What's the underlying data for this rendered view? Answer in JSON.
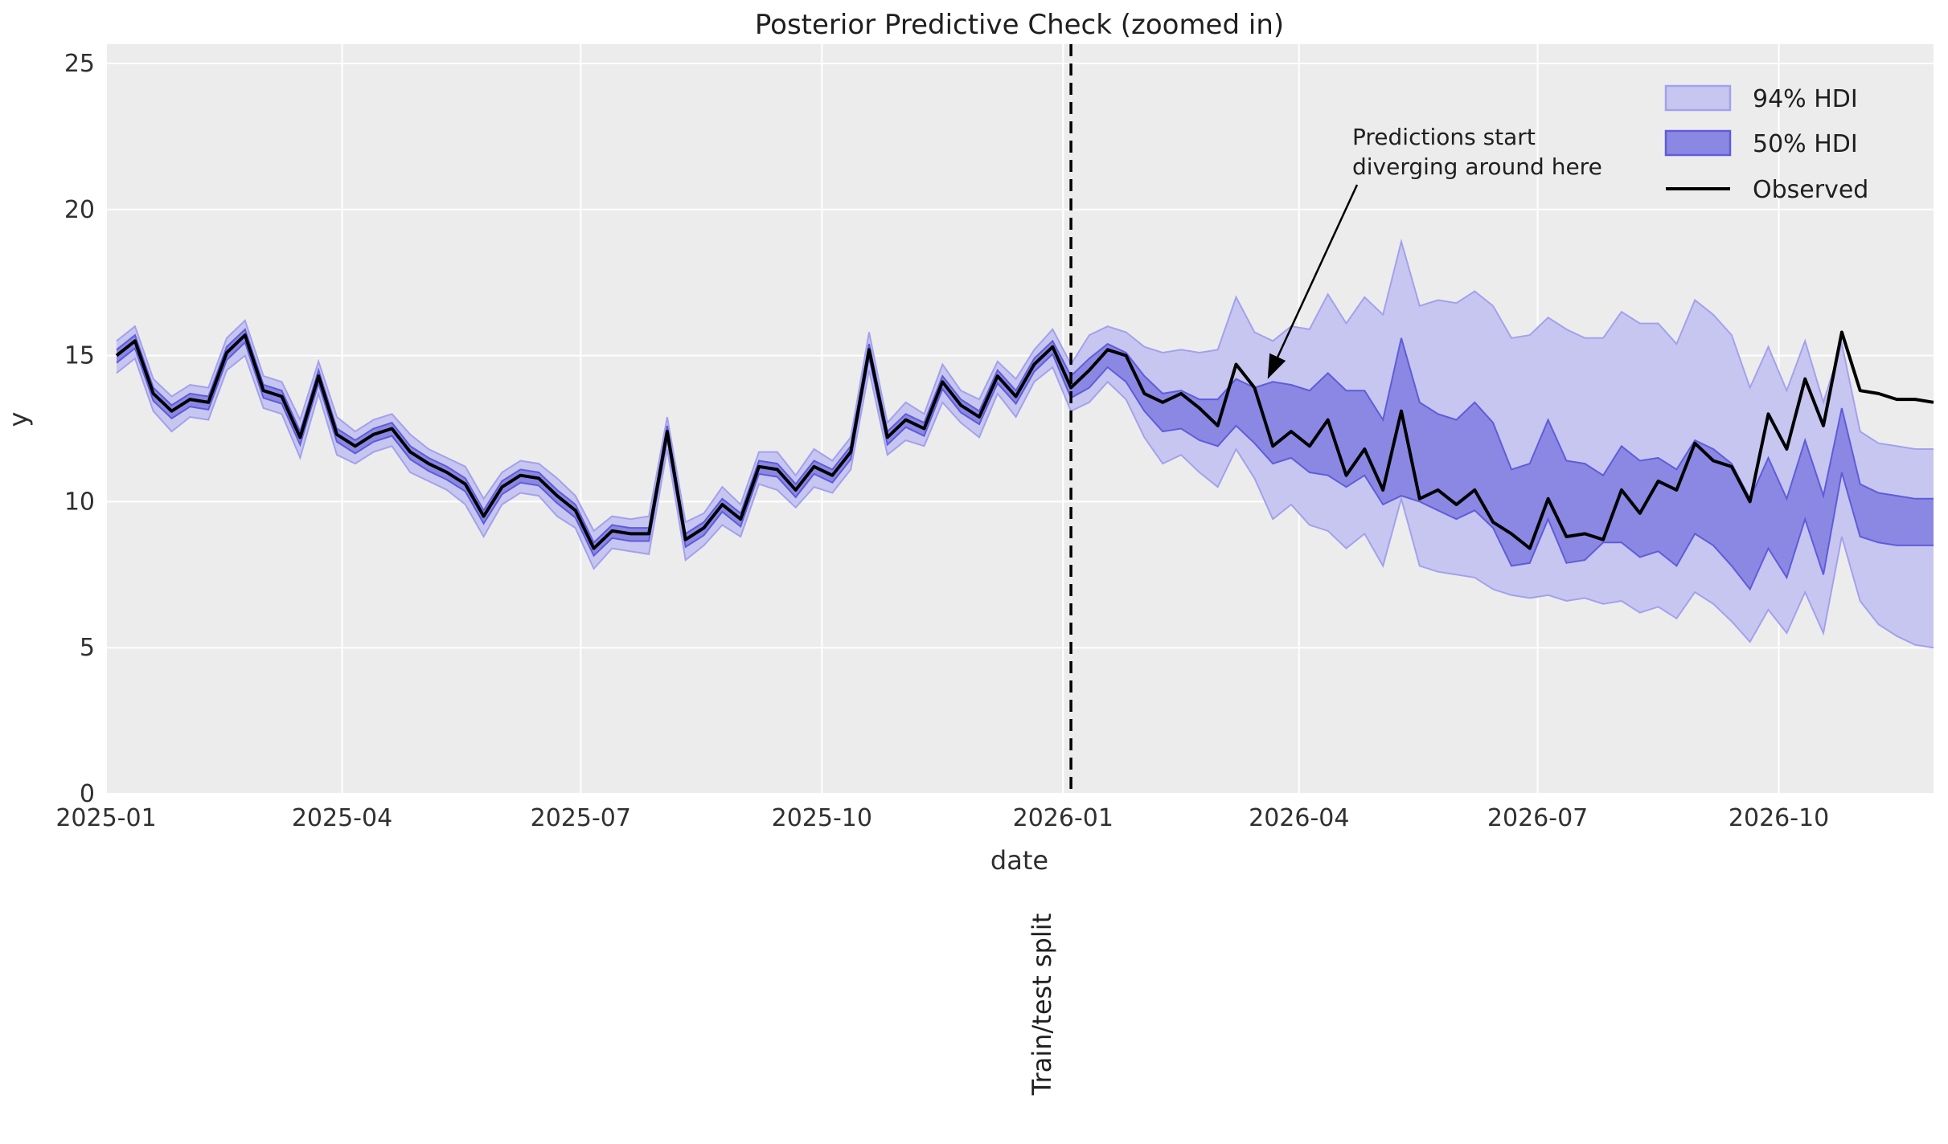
{
  "title": "Posterior Predictive Check (zoomed in)",
  "axes": {
    "xlabel": "date",
    "ylabel": "y"
  },
  "legend": {
    "items": [
      {
        "label": "94% HDI",
        "swatch": "hdi94-patch"
      },
      {
        "label": "50% HDI",
        "swatch": "hdi50-patch"
      },
      {
        "label": "Observed",
        "swatch": "black-line"
      }
    ]
  },
  "annotation": {
    "lines": [
      "Predictions start",
      "diverging around here"
    ],
    "arrow_tip": {
      "date": "2026-03-20",
      "y": 14.2
    }
  },
  "split": {
    "label": "Train/test split",
    "date": "2026-01-04"
  },
  "colors": {
    "axes_bg": "#ececec",
    "grid": "#ffffff",
    "observed": "#000000",
    "hdi94_fill": "#c7c6f0",
    "hdi94_edge": "#a3a1ec",
    "hdi50_fill": "#8a88e3",
    "hdi50_edge": "#5f5cd9",
    "split_line": "#000000"
  },
  "chart_data": {
    "type": "line",
    "title": "Posterior Predictive Check (zoomed in)",
    "xlabel": "date",
    "ylabel": "y",
    "xlim": [
      "2025-01-01",
      "2026-11-29"
    ],
    "ylim": [
      0,
      25.66
    ],
    "grid": true,
    "legend_position": "upper right",
    "xticks": [
      {
        "label": "2025-01",
        "date": "2025-01-01"
      },
      {
        "label": "2025-04",
        "date": "2025-04-01"
      },
      {
        "label": "2025-07",
        "date": "2025-07-01"
      },
      {
        "label": "2025-10",
        "date": "2025-10-01"
      },
      {
        "label": "2026-01",
        "date": "2026-01-01"
      },
      {
        "label": "2026-04",
        "date": "2026-04-01"
      },
      {
        "label": "2026-07",
        "date": "2026-07-01"
      },
      {
        "label": "2026-10",
        "date": "2026-10-01"
      }
    ],
    "yticks": [
      0,
      5,
      10,
      15,
      20,
      25
    ],
    "x": [
      "2025-01-05",
      "2025-01-12",
      "2025-01-19",
      "2025-01-26",
      "2025-02-02",
      "2025-02-09",
      "2025-02-16",
      "2025-02-23",
      "2025-03-02",
      "2025-03-09",
      "2025-03-16",
      "2025-03-23",
      "2025-03-30",
      "2025-04-06",
      "2025-04-13",
      "2025-04-20",
      "2025-04-27",
      "2025-05-04",
      "2025-05-11",
      "2025-05-18",
      "2025-05-25",
      "2025-06-01",
      "2025-06-08",
      "2025-06-15",
      "2025-06-22",
      "2025-06-29",
      "2025-07-06",
      "2025-07-13",
      "2025-07-20",
      "2025-07-27",
      "2025-08-03",
      "2025-08-10",
      "2025-08-17",
      "2025-08-24",
      "2025-08-31",
      "2025-09-07",
      "2025-09-14",
      "2025-09-21",
      "2025-09-28",
      "2025-10-05",
      "2025-10-12",
      "2025-10-19",
      "2025-10-26",
      "2025-11-02",
      "2025-11-09",
      "2025-11-16",
      "2025-11-23",
      "2025-11-30",
      "2025-12-07",
      "2025-12-14",
      "2025-12-21",
      "2025-12-28",
      "2026-01-04",
      "2026-01-11",
      "2026-01-18",
      "2026-01-25",
      "2026-02-01",
      "2026-02-08",
      "2026-02-15",
      "2026-02-22",
      "2026-03-01",
      "2026-03-08",
      "2026-03-15",
      "2026-03-22",
      "2026-03-29",
      "2026-04-05",
      "2026-04-12",
      "2026-04-19",
      "2026-04-26",
      "2026-05-03",
      "2026-05-10",
      "2026-05-17",
      "2026-05-24",
      "2026-05-31",
      "2026-06-07",
      "2026-06-14",
      "2026-06-21",
      "2026-06-28",
      "2026-07-05",
      "2026-07-12",
      "2026-07-19",
      "2026-07-26",
      "2026-08-02",
      "2026-08-09",
      "2026-08-16",
      "2026-08-23",
      "2026-08-30",
      "2026-09-06",
      "2026-09-13",
      "2026-09-20",
      "2026-09-27",
      "2026-10-04",
      "2026-10-11",
      "2026-10-18",
      "2026-10-25",
      "2026-11-01",
      "2026-11-08",
      "2026-11-15",
      "2026-11-22",
      "2026-11-29"
    ],
    "series": [
      {
        "name": "Observed",
        "values": [
          15.0,
          15.5,
          13.7,
          13.1,
          13.5,
          13.4,
          15.1,
          15.7,
          13.8,
          13.6,
          12.2,
          14.3,
          12.3,
          11.9,
          12.3,
          12.5,
          11.7,
          11.3,
          11.0,
          10.6,
          9.5,
          10.5,
          10.9,
          10.8,
          10.2,
          9.7,
          8.4,
          9.0,
          8.9,
          8.9,
          12.4,
          8.7,
          9.1,
          9.9,
          9.4,
          11.2,
          11.1,
          10.4,
          11.2,
          10.9,
          11.7,
          15.2,
          12.2,
          12.8,
          12.5,
          14.1,
          13.3,
          12.9,
          14.3,
          13.6,
          14.7,
          15.3,
          13.9,
          14.5,
          15.2,
          15.0,
          13.7,
          13.4,
          13.7,
          13.2,
          12.6,
          14.7,
          13.9,
          11.9,
          12.4,
          11.9,
          12.8,
          10.9,
          11.8,
          10.4,
          13.1,
          10.1,
          10.4,
          9.9,
          10.4,
          9.3,
          8.9,
          8.4,
          10.1,
          8.8,
          8.9,
          8.7,
          10.4,
          9.6,
          10.7,
          10.4,
          12.0,
          11.4,
          11.2,
          10.0,
          13.0,
          11.8,
          14.2,
          12.6,
          15.8,
          13.8,
          13.7,
          13.5,
          13.5,
          13.4
        ]
      },
      {
        "name": "94% HDI lower",
        "values": [
          14.4,
          14.9,
          13.1,
          12.4,
          12.9,
          12.8,
          14.5,
          15.0,
          13.2,
          13.0,
          11.5,
          13.7,
          11.6,
          11.3,
          11.7,
          11.9,
          11.0,
          10.7,
          10.4,
          9.9,
          8.8,
          9.9,
          10.3,
          10.2,
          9.5,
          9.1,
          7.7,
          8.4,
          8.3,
          8.2,
          11.8,
          8.0,
          8.5,
          9.2,
          8.8,
          10.6,
          10.4,
          9.8,
          10.5,
          10.3,
          11.1,
          14.5,
          11.6,
          12.1,
          11.9,
          13.4,
          12.7,
          12.2,
          13.7,
          12.9,
          14.1,
          14.6,
          13.1,
          13.4,
          14.1,
          13.5,
          12.2,
          11.3,
          11.6,
          11.0,
          10.5,
          11.8,
          10.8,
          9.4,
          9.9,
          9.2,
          9.0,
          8.4,
          8.9,
          7.8,
          10.1,
          7.8,
          7.6,
          7.5,
          7.4,
          7.0,
          6.8,
          6.7,
          6.8,
          6.6,
          6.7,
          6.5,
          6.6,
          6.2,
          6.4,
          6.0,
          6.9,
          6.5,
          5.9,
          5.2,
          6.3,
          5.5,
          6.9,
          5.5,
          8.8,
          6.6,
          5.8,
          5.4,
          5.1,
          5.0
        ]
      },
      {
        "name": "94% HDI upper",
        "values": [
          15.5,
          16.0,
          14.2,
          13.6,
          14.0,
          13.9,
          15.6,
          16.2,
          14.3,
          14.1,
          12.8,
          14.8,
          12.9,
          12.4,
          12.8,
          13.0,
          12.3,
          11.8,
          11.5,
          11.2,
          10.1,
          11.0,
          11.4,
          11.3,
          10.8,
          10.2,
          9.0,
          9.5,
          9.4,
          9.5,
          12.9,
          9.3,
          9.6,
          10.5,
          9.9,
          11.7,
          11.7,
          10.9,
          11.8,
          11.4,
          12.2,
          15.8,
          12.7,
          13.4,
          13.0,
          14.7,
          13.8,
          13.5,
          14.8,
          14.2,
          15.2,
          15.9,
          14.7,
          15.7,
          16.0,
          15.8,
          15.3,
          15.1,
          15.2,
          15.1,
          15.2,
          17.0,
          15.8,
          15.5,
          16.0,
          15.9,
          17.1,
          16.1,
          17.0,
          16.4,
          18.9,
          16.7,
          16.9,
          16.8,
          17.2,
          16.7,
          15.6,
          15.7,
          16.3,
          15.9,
          15.6,
          15.6,
          16.5,
          16.1,
          16.1,
          15.4,
          16.9,
          16.4,
          15.7,
          13.9,
          15.3,
          13.8,
          15.5,
          13.4,
          15.4,
          12.4,
          12.0,
          11.9,
          11.8,
          11.8
        ]
      },
      {
        "name": "50% HDI lower",
        "values": [
          14.75,
          15.25,
          13.45,
          12.85,
          13.25,
          13.15,
          14.85,
          15.45,
          13.55,
          13.35,
          11.95,
          14.05,
          12.05,
          11.65,
          12.05,
          12.25,
          11.45,
          11.05,
          10.75,
          10.35,
          9.25,
          10.25,
          10.65,
          10.55,
          9.95,
          9.45,
          8.15,
          8.75,
          8.65,
          8.65,
          12.15,
          8.45,
          8.85,
          9.65,
          9.15,
          10.95,
          10.85,
          10.15,
          10.95,
          10.65,
          11.45,
          14.95,
          11.95,
          12.55,
          12.25,
          13.85,
          13.05,
          12.65,
          14.05,
          13.35,
          14.45,
          15.05,
          13.55,
          13.9,
          14.6,
          14.1,
          13.1,
          12.4,
          12.5,
          12.1,
          11.9,
          12.6,
          12.0,
          11.3,
          11.5,
          11.0,
          10.9,
          10.5,
          10.9,
          9.9,
          10.2,
          10.0,
          9.7,
          9.4,
          9.7,
          9.1,
          7.8,
          7.9,
          9.4,
          7.9,
          8.0,
          8.6,
          8.6,
          8.1,
          8.3,
          7.8,
          8.9,
          8.5,
          7.8,
          7.0,
          8.4,
          7.4,
          9.4,
          7.5,
          11.0,
          8.8,
          8.6,
          8.5,
          8.5,
          8.5
        ]
      },
      {
        "name": "50% HDI upper",
        "values": [
          15.2,
          15.7,
          13.9,
          13.3,
          13.7,
          13.6,
          15.3,
          15.9,
          14.0,
          13.8,
          12.4,
          14.5,
          12.5,
          12.1,
          12.5,
          12.7,
          11.9,
          11.5,
          11.2,
          10.8,
          9.7,
          10.7,
          11.1,
          11.0,
          10.4,
          9.9,
          8.6,
          9.2,
          9.1,
          9.1,
          12.6,
          8.9,
          9.3,
          10.1,
          9.6,
          11.4,
          11.3,
          10.6,
          11.4,
          11.1,
          11.9,
          15.4,
          12.4,
          13.0,
          12.7,
          14.3,
          13.5,
          13.1,
          14.5,
          13.8,
          14.9,
          15.5,
          14.3,
          14.9,
          15.4,
          15.1,
          14.3,
          13.7,
          13.8,
          13.5,
          13.5,
          14.2,
          13.9,
          14.1,
          14.0,
          13.8,
          14.4,
          13.8,
          13.8,
          12.8,
          15.6,
          13.4,
          13.0,
          12.8,
          13.4,
          12.7,
          11.1,
          11.3,
          12.8,
          11.4,
          11.3,
          10.9,
          11.9,
          11.4,
          11.5,
          11.1,
          12.1,
          11.8,
          11.3,
          10.1,
          11.5,
          10.1,
          12.1,
          10.2,
          13.2,
          10.6,
          10.3,
          10.2,
          10.1,
          10.1
        ]
      }
    ]
  }
}
